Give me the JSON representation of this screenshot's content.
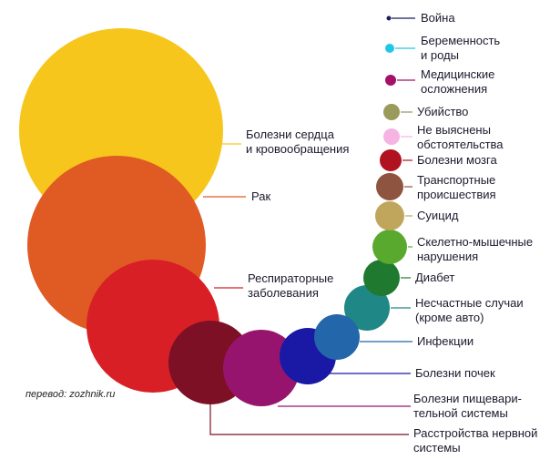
{
  "chart_data": {
    "type": "bubble",
    "credit": "перевод: zozhnik.ru",
    "series": [
      {
        "label": [
          "Война"
        ],
        "color": "#1c1f5e"
      },
      {
        "label": [
          "Беременность",
          "и роды"
        ],
        "color": "#23c6e6"
      },
      {
        "label": [
          "Медицинские",
          "осложнения"
        ],
        "color": "#a4116a"
      },
      {
        "label": [
          "Убийство"
        ],
        "color": "#9a9a5c"
      },
      {
        "label": [
          "Не выяснены",
          "обстоятельства"
        ],
        "color": "#f6b4e2"
      },
      {
        "label": [
          "Болезни мозга"
        ],
        "color": "#b0121f"
      },
      {
        "label": [
          "Транспортные",
          "происшествия"
        ],
        "color": "#8f5440"
      },
      {
        "label": [
          "Суицид"
        ],
        "color": "#bfa65c"
      },
      {
        "label": [
          "Скелетно-мышечные",
          "нарушения"
        ],
        "color": "#59a92e"
      },
      {
        "label": [
          "Диабет"
        ],
        "color": "#1f7a2f"
      },
      {
        "label": [
          "Несчастные случаи",
          "(кроме авто)"
        ],
        "color": "#1f8786"
      },
      {
        "label": [
          "Инфекции"
        ],
        "color": "#2366aa"
      },
      {
        "label": [
          "Болезни почек"
        ],
        "color": "#1919a6"
      },
      {
        "label": [
          "Болезни пищевари-",
          "тельной системы"
        ],
        "color": "#97146e"
      },
      {
        "label": [
          "Расстройства нервной",
          "системы"
        ],
        "color": "#7d1024"
      },
      {
        "label": [
          "Респираторные",
          "заболевания"
        ],
        "color": "#d91f26"
      },
      {
        "label": [
          "Рак"
        ],
        "color": "#e05a24"
      },
      {
        "label": [
          "Болезни сердца",
          "и кровообращения"
        ],
        "color": "#f7c61d"
      }
    ]
  }
}
